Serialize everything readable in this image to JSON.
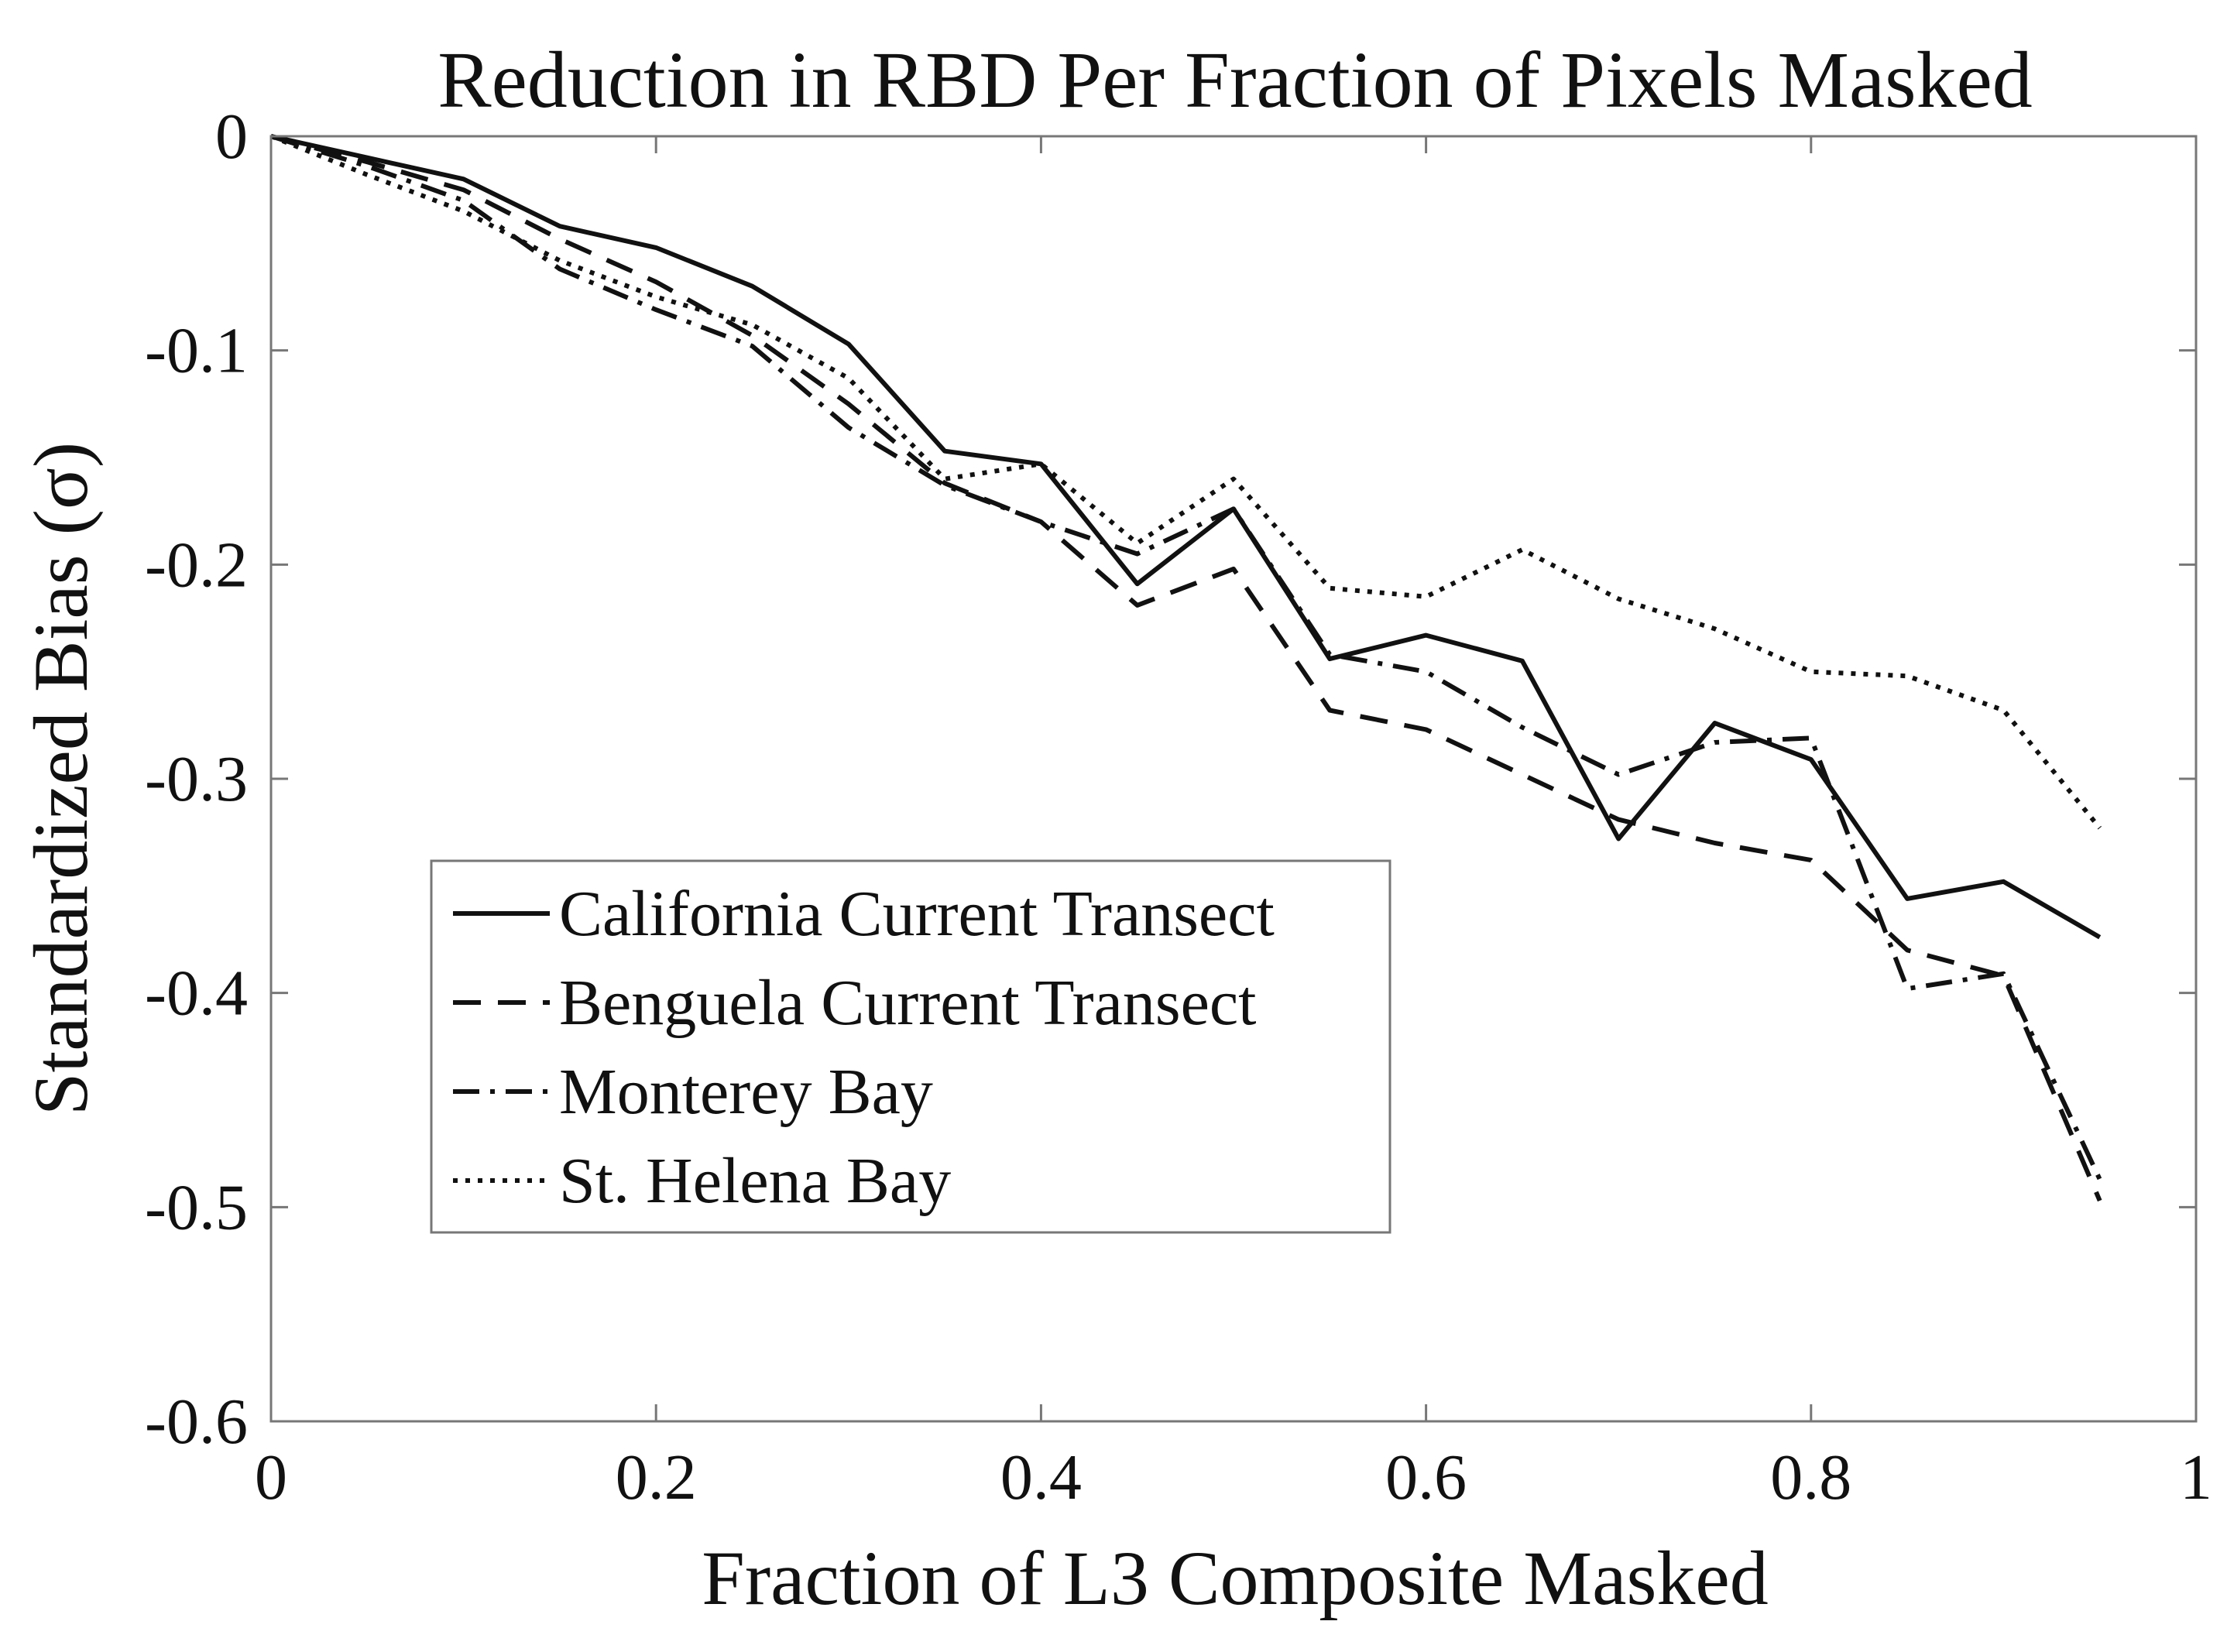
{
  "chart_data": {
    "type": "line",
    "title": "Reduction in RBD Per Fraction of Pixels Masked",
    "xlabel": "Fraction of L3 Composite Masked",
    "ylabel": "Standardized Bias (σ)",
    "xlim": [
      0,
      1
    ],
    "ylim": [
      -0.6,
      0
    ],
    "x_ticks": [
      0,
      0.2,
      0.4,
      0.6,
      0.8,
      1
    ],
    "x_tick_labels": [
      "0",
      "0.2",
      "0.4",
      "0.6",
      "0.8",
      "1"
    ],
    "y_ticks": [
      0,
      -0.1,
      -0.2,
      -0.3,
      -0.4,
      -0.5,
      -0.6
    ],
    "y_tick_labels": [
      "0",
      "-0.1",
      "-0.2",
      "-0.3",
      "-0.4",
      "-0.5",
      "-0.6"
    ],
    "grid": false,
    "legend_position": "lower-left",
    "x": [
      0,
      0.05,
      0.1,
      0.15,
      0.2,
      0.25,
      0.3,
      0.35,
      0.4,
      0.45,
      0.5,
      0.55,
      0.6,
      0.65,
      0.7,
      0.75,
      0.8,
      0.85,
      0.9,
      0.95
    ],
    "series": [
      {
        "name": "California Current Transect",
        "style": "solid",
        "values": [
          0,
          -0.01,
          -0.02,
          -0.042,
          -0.052,
          -0.07,
          -0.097,
          -0.147,
          -0.153,
          -0.209,
          -0.174,
          -0.244,
          -0.233,
          -0.245,
          -0.328,
          -0.274,
          -0.291,
          -0.356,
          -0.348,
          -0.374
        ]
      },
      {
        "name": "Benguela Current Transect",
        "style": "dashed",
        "values": [
          0,
          -0.012,
          -0.025,
          -0.048,
          -0.068,
          -0.093,
          -0.125,
          -0.162,
          -0.18,
          -0.219,
          -0.202,
          -0.268,
          -0.277,
          -0.298,
          -0.319,
          -0.33,
          -0.338,
          -0.38,
          -0.392,
          -0.497
        ]
      },
      {
        "name": "Monterey Bay",
        "style": "dashdot",
        "values": [
          0,
          -0.014,
          -0.03,
          -0.062,
          -0.081,
          -0.098,
          -0.136,
          -0.163,
          -0.18,
          -0.195,
          -0.174,
          -0.242,
          -0.25,
          -0.276,
          -0.298,
          -0.283,
          -0.281,
          -0.398,
          -0.391,
          -0.487
        ]
      },
      {
        "name": "St. Helena Bay",
        "style": "dotted",
        "values": [
          0,
          -0.018,
          -0.035,
          -0.058,
          -0.075,
          -0.088,
          -0.113,
          -0.16,
          -0.153,
          -0.19,
          -0.16,
          -0.211,
          -0.215,
          -0.193,
          -0.216,
          -0.23,
          -0.25,
          -0.252,
          -0.268,
          -0.323
        ]
      }
    ]
  }
}
